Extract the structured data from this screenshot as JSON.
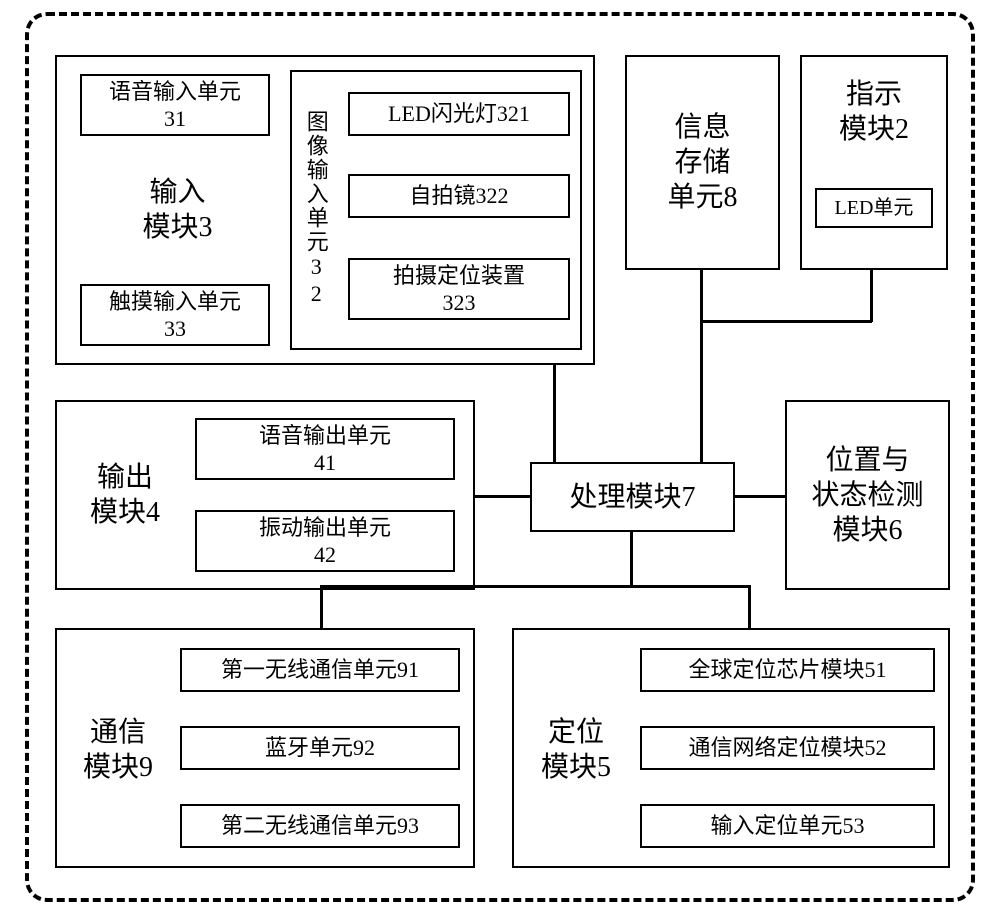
{
  "font": {
    "base": 24,
    "small": 22,
    "num": 22
  },
  "colors": {
    "line": "#000000",
    "bg": "#ffffff"
  },
  "modules": {
    "input": {
      "title": "输入<br>模块3",
      "voice": "语音输入单元<br>31",
      "touch": "触摸输入单元<br>33",
      "image_label": "图像输入单元32",
      "led_flash": "LED闪光灯321",
      "selfie": "自拍镜322",
      "shoot_pos": "拍摄定位装置<br>323"
    },
    "info_store": "信息<br>存储<br>单元8",
    "indicator": {
      "title": "指示<br>模块2",
      "led": "LED单元"
    },
    "output": {
      "title": "输出<br>模块4",
      "voice": "语音输出单元<br>41",
      "vib": "振动输出单元<br>42"
    },
    "processing": "处理模块7",
    "pos_state": "位置与<br>状态检测<br>模块6",
    "comm": {
      "title": "通信<br>模块9",
      "w1": "第一无线通信单元91",
      "bt": "蓝牙单元92",
      "w2": "第二无线通信单元93"
    },
    "locate": {
      "title": "定位<br>模块5",
      "gps": "全球定位芯片模块51",
      "net": "通信网络定位模块52",
      "inp": "输入定位单元53"
    }
  }
}
